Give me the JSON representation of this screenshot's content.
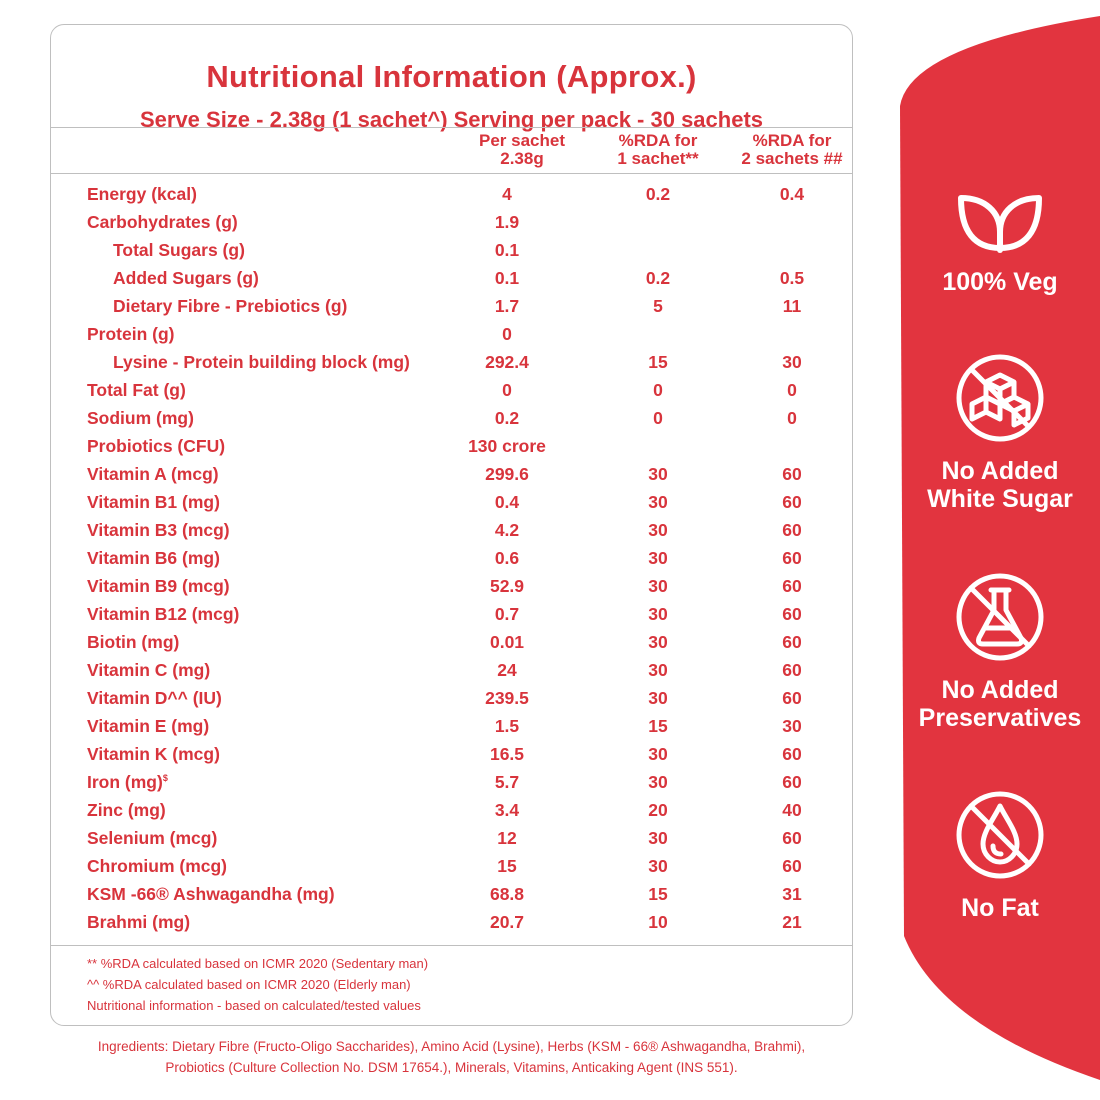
{
  "header": {
    "title": "Nutritional Information (Approx.)",
    "subtitle": "Serve Size - 2.38g (1 sachet^) Serving per pack - 30 sachets"
  },
  "columns": {
    "c1_line1": "Per sachet",
    "c1_line2": "2.38g",
    "c2_line1": "%RDA for",
    "c2_line2": "1 sachet**",
    "c3_line1": "%RDA for",
    "c3_line2": "2 sachets ##"
  },
  "rows": [
    {
      "name": "Energy (kcal)",
      "per": "4",
      "rda1": "0.2",
      "rda2": "0.4"
    },
    {
      "name": "Carbohydrates (g)",
      "per": "1.9",
      "rda1": "",
      "rda2": ""
    },
    {
      "name": "Total Sugars (g)",
      "per": "0.1",
      "rda1": "",
      "rda2": ""
    },
    {
      "name": "Added Sugars (g)",
      "per": "0.1",
      "rda1": "0.2",
      "rda2": "0.5"
    },
    {
      "name": "Dietary Fibre - Prebiotics (g)",
      "per": "1.7",
      "rda1": "5",
      "rda2": "11"
    },
    {
      "name": "Protein (g)",
      "per": "0",
      "rda1": "",
      "rda2": ""
    },
    {
      "name": "Lysine - Protein building block  (mg)",
      "per": "292.4",
      "rda1": "15",
      "rda2": "30"
    },
    {
      "name": "Total Fat (g)",
      "per": "0",
      "rda1": "0",
      "rda2": "0"
    },
    {
      "name": "Sodium (mg)",
      "per": "0.2",
      "rda1": "0",
      "rda2": "0"
    },
    {
      "name": "Probiotics (CFU)",
      "per": "130 crore",
      "rda1": "",
      "rda2": ""
    },
    {
      "name": "Vitamin A (mcg)",
      "per": "299.6",
      "rda1": "30",
      "rda2": "60"
    },
    {
      "name": "Vitamin B1 (mg)",
      "per": "0.4",
      "rda1": "30",
      "rda2": "60"
    },
    {
      "name": "Vitamin B3 (mcg)",
      "per": "4.2",
      "rda1": "30",
      "rda2": "60"
    },
    {
      "name": "Vitamin B6 (mg)",
      "per": "0.6",
      "rda1": "30",
      "rda2": "60"
    },
    {
      "name": "Vitamin B9 (mcg)",
      "per": "52.9",
      "rda1": "30",
      "rda2": "60"
    },
    {
      "name": "Vitamin B12 (mcg)",
      "per": "0.7",
      "rda1": "30",
      "rda2": "60"
    },
    {
      "name": "Biotin (mg)",
      "per": "0.01",
      "rda1": "30",
      "rda2": "60"
    },
    {
      "name": "Vitamin C (mg)",
      "per": "24",
      "rda1": "30",
      "rda2": "60"
    },
    {
      "name": "Vitamin D^^ (IU)",
      "per": "239.5",
      "rda1": "30",
      "rda2": "60"
    },
    {
      "name": "Vitamin E (mg)",
      "per": "1.5",
      "rda1": "15",
      "rda2": "30"
    },
    {
      "name": "Vitamin K (mcg)",
      "per": "16.5",
      "rda1": "30",
      "rda2": "60"
    },
    {
      "name": "Iron (mg)",
      "sup": "$",
      "per": "5.7",
      "rda1": "30",
      "rda2": "60"
    },
    {
      "name": "Zinc (mg)",
      "per": "3.4",
      "rda1": "20",
      "rda2": "40"
    },
    {
      "name": "Selenium (mcg)",
      "per": "12",
      "rda1": "30",
      "rda2": "60"
    },
    {
      "name": "Chromium (mcg)",
      "per": "15",
      "rda1": "30",
      "rda2": "60"
    },
    {
      "name": "KSM -66® Ashwagandha (mg)",
      "per": "68.8",
      "rda1": "15",
      "rda2": "31"
    },
    {
      "name": "Brahmi (mg)",
      "per": "20.7",
      "rda1": "10",
      "rda2": "21"
    }
  ],
  "footnotes": [
    "** %RDA calculated based on ICMR 2020 (Sedentary man)",
    "^^ %RDA calculated based on ICMR 2020 (Elderly man)",
    "Nutritional information - based on calculated/tested values"
  ],
  "ingredients": {
    "line1": "Ingredients: Dietary Fibre (Fructo-Oligo Saccharides), Amino Acid (Lysine), Herbs (KSM - 66® Ashwagandha, Brahmi),",
    "line2": "Probiotics (Culture Collection No. DSM 17654.), Minerals, Vitamins, Anticaking Agent (INS 551)."
  },
  "badges": {
    "veg": {
      "icon": "leaf-icon",
      "line1": "100% Veg"
    },
    "sugar": {
      "icon": "no-sugar-cubes-icon",
      "line1": "No Added",
      "line2": "White Sugar"
    },
    "preservatives": {
      "icon": "no-flask-icon",
      "line1": "No Added",
      "line2": "Preservatives"
    },
    "fat": {
      "icon": "no-fat-drop-icon",
      "line1": "No Fat"
    }
  },
  "colors": {
    "accent": "#d8343c",
    "sidebar": "#e2343f",
    "border": "#bfbfbf"
  }
}
